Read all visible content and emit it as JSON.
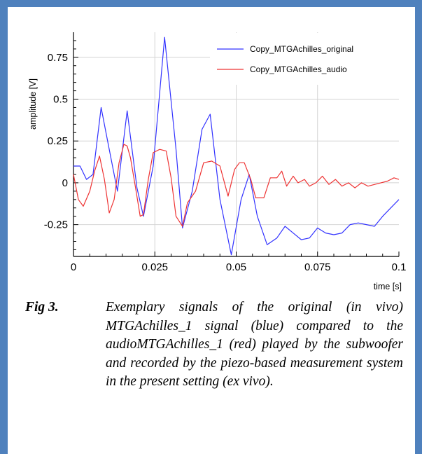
{
  "caption": {
    "label": "Fig 3.",
    "text": "Exemplary signals of the original (in vivo) MTGAchilles_1 signal (blue) compared to the audioMTGAchilles_1 (red) played by the subwoofer and recorded by the piezo-based measurement system in the present setting (ex vivo)."
  },
  "colors": {
    "frame": "#4f81bd",
    "original": "#3333ff",
    "audio": "#ee3333",
    "grid": "#d4d4d4"
  },
  "chart_data": {
    "type": "line",
    "title": "",
    "xlabel": "time [s]",
    "ylabel": "amplitude [V]",
    "xlim": [
      0,
      0.1
    ],
    "ylim": [
      -0.44,
      0.9
    ],
    "x_ticks": [
      0,
      0.025,
      0.05,
      0.075,
      0.1
    ],
    "x_tick_labels": [
      "0",
      "0.025",
      "0.05",
      "0.075",
      "0.1"
    ],
    "y_ticks": [
      -0.25,
      0,
      0.25,
      0.5,
      0.75
    ],
    "y_tick_labels": [
      "-0.25",
      "0",
      "0.25",
      "0.5",
      "0.75"
    ],
    "grid": true,
    "legend_position": "top-right",
    "series": [
      {
        "name": "Copy_MTGAchilles_original",
        "color": "#3333ff",
        "x": [
          0,
          0.002,
          0.004,
          0.006,
          0.0085,
          0.011,
          0.0135,
          0.0165,
          0.0195,
          0.0215,
          0.0245,
          0.028,
          0.0315,
          0.0335,
          0.0365,
          0.0395,
          0.042,
          0.045,
          0.0485,
          0.0515,
          0.054,
          0.0565,
          0.0595,
          0.0625,
          0.065,
          0.0675,
          0.07,
          0.0725,
          0.075,
          0.0775,
          0.08,
          0.0825,
          0.085,
          0.0875,
          0.09,
          0.0925,
          0.095,
          0.0975,
          0.1
        ],
        "y": [
          0.1,
          0.1,
          0.02,
          0.05,
          0.45,
          0.2,
          -0.05,
          0.43,
          -0.03,
          -0.2,
          0.1,
          0.87,
          0.2,
          -0.27,
          -0.05,
          0.32,
          0.41,
          -0.1,
          -0.43,
          -0.1,
          0.05,
          -0.2,
          -0.37,
          -0.33,
          -0.26,
          -0.3,
          -0.34,
          -0.33,
          -0.27,
          -0.3,
          -0.31,
          -0.3,
          -0.25,
          -0.24,
          -0.25,
          -0.26,
          -0.2,
          -0.15,
          -0.1
        ]
      },
      {
        "name": "Copy_MTGAchilles_audio",
        "color": "#ee3333",
        "x": [
          0,
          0.0015,
          0.003,
          0.005,
          0.0065,
          0.008,
          0.0095,
          0.011,
          0.0125,
          0.014,
          0.0155,
          0.0165,
          0.0175,
          0.019,
          0.0205,
          0.0215,
          0.023,
          0.0245,
          0.0265,
          0.0285,
          0.03,
          0.0315,
          0.0335,
          0.035,
          0.0375,
          0.04,
          0.0425,
          0.045,
          0.0475,
          0.0495,
          0.051,
          0.0525,
          0.0545,
          0.056,
          0.0585,
          0.0605,
          0.0625,
          0.064,
          0.0655,
          0.0675,
          0.069,
          0.071,
          0.0725,
          0.0745,
          0.0765,
          0.0785,
          0.0805,
          0.0825,
          0.0845,
          0.0865,
          0.0885,
          0.0905,
          0.0925,
          0.0945,
          0.0965,
          0.0985,
          0.1
        ],
        "y": [
          0.05,
          -0.1,
          -0.14,
          -0.05,
          0.07,
          0.16,
          0.02,
          -0.18,
          -0.1,
          0.12,
          0.23,
          0.22,
          0.15,
          -0.02,
          -0.2,
          -0.19,
          0.02,
          0.18,
          0.2,
          0.19,
          0.03,
          -0.2,
          -0.26,
          -0.12,
          -0.05,
          0.12,
          0.13,
          0.1,
          -0.08,
          0.08,
          0.12,
          0.12,
          0.02,
          -0.09,
          -0.09,
          0.03,
          0.03,
          0.07,
          -0.02,
          0.04,
          0.0,
          0.02,
          -0.02,
          0.0,
          0.04,
          -0.01,
          0.02,
          -0.02,
          0.0,
          -0.03,
          0.0,
          -0.02,
          -0.01,
          0.0,
          0.01,
          0.03,
          0.02
        ]
      }
    ]
  }
}
